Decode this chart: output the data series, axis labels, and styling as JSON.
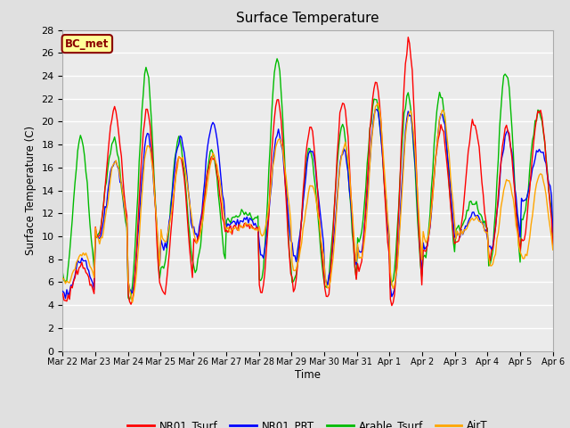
{
  "title": "Surface Temperature",
  "ylabel": "Surface Temperature (C)",
  "xlabel": "Time",
  "annotation": "BC_met",
  "annotation_color": "#8B0000",
  "annotation_bg": "#FFFF99",
  "ylim": [
    0,
    28
  ],
  "yticks": [
    0,
    2,
    4,
    6,
    8,
    10,
    12,
    14,
    16,
    18,
    20,
    22,
    24,
    26,
    28
  ],
  "plot_bg": "#EBEBEB",
  "grid_color": "#FFFFFF",
  "line_colors": {
    "NR01_Tsurf": "#FF0000",
    "NR01_PRT": "#0000FF",
    "Arable_Tsurf": "#00BB00",
    "AirT": "#FFA500"
  },
  "line_width": 1.0,
  "date_labels": [
    "Mar 22",
    "Mar 23",
    "Mar 24",
    "Mar 25",
    "Mar 26",
    "Mar 27",
    "Mar 28",
    "Mar 29",
    "Mar 30",
    "Mar 31",
    "Apr 1",
    "Apr 2",
    "Apr 3",
    "Apr 4",
    "Apr 5",
    "Apr 6"
  ],
  "num_points": 360,
  "total_days": 15
}
